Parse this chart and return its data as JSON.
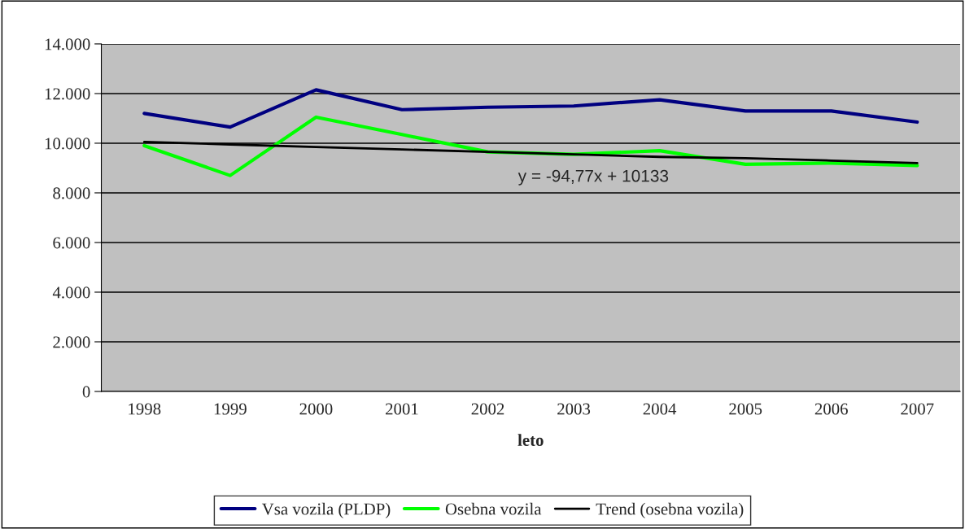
{
  "chart_data": {
    "type": "line",
    "xlabel": "leto",
    "categories": [
      "1998",
      "1999",
      "2000",
      "2001",
      "2002",
      "2003",
      "2004",
      "2005",
      "2006",
      "2007"
    ],
    "series": [
      {
        "name": "Vsa vozila (PLDP)",
        "color": "#000080",
        "values": [
          11200,
          10650,
          12150,
          11350,
          11450,
          11500,
          11750,
          11300,
          11300,
          10850
        ]
      },
      {
        "name": "Osebna vozila",
        "color": "#00ff00",
        "values": [
          9900,
          8700,
          11050,
          10350,
          9650,
          9550,
          9700,
          9150,
          9200,
          9100
        ]
      },
      {
        "name": "Trend (osebna vozila)",
        "color": "#000000",
        "values": [
          10050,
          9950,
          9850,
          9750,
          9650,
          9550,
          9450,
          9400,
          9300,
          9200
        ]
      }
    ],
    "annotations": [
      "y = -94,77x + 10133"
    ],
    "ylim": [
      0,
      14000
    ],
    "yticks": [
      0,
      {
        "value": 2000,
        "label": "2.000"
      },
      {
        "value": 4000,
        "label": "4.000"
      },
      {
        "value": 6000,
        "label": "6.000"
      },
      {
        "value": 8000,
        "label": "8.000"
      },
      {
        "value": 10000,
        "label": "10.000"
      },
      {
        "value": 12000,
        "label": "12.000"
      },
      {
        "value": 14000,
        "label": "14.000"
      }
    ],
    "grid": "y",
    "legend": "bottom"
  }
}
